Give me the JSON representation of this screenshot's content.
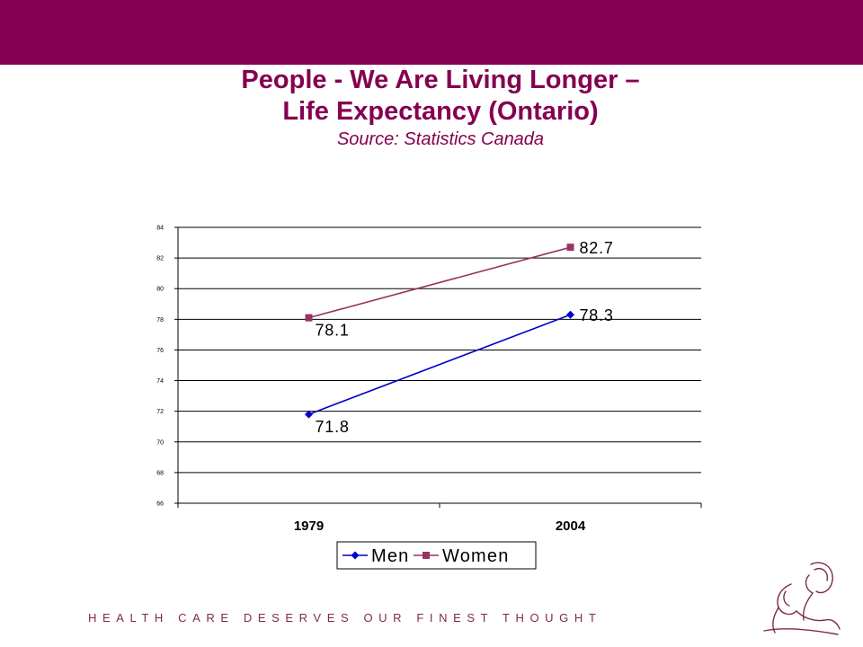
{
  "slide": {
    "title_line1": "People - We Are Living Longer –",
    "title_line2": "Life Expectancy (Ontario)",
    "subtitle": "Source: Statistics Canada",
    "tagline": "HEALTH CARE DESERVES OUR FINEST THOUGHT",
    "brand_color": "#850050",
    "logo_icon": "mother-and-child-logo-icon"
  },
  "chart_data": {
    "type": "line",
    "categories": [
      "1979",
      "2004"
    ],
    "series": [
      {
        "name": "Men",
        "values": [
          71.8,
          78.3
        ],
        "color": "#0000CC",
        "marker": "diamond",
        "value_labels": [
          "71.8",
          "78.3"
        ]
      },
      {
        "name": "Women",
        "values": [
          78.1,
          82.7
        ],
        "color": "#993366",
        "marker": "square",
        "value_labels": [
          "78.1",
          "82.7"
        ]
      }
    ],
    "ylim": [
      66,
      84
    ],
    "yticks": [
      "66",
      "68",
      "70",
      "72",
      "74",
      "76",
      "78",
      "80",
      "82",
      "84"
    ],
    "grid": true,
    "legend": "bottom",
    "xlabel": "",
    "ylabel": ""
  }
}
